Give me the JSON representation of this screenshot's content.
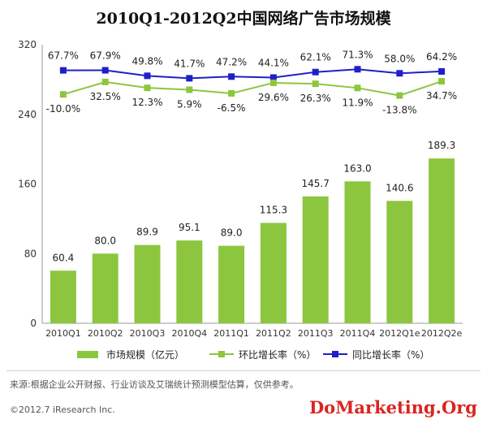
{
  "chart_data": {
    "type": "bar",
    "title": "2010Q1-2012Q2中国网络广告市场规模",
    "categories": [
      "2010Q1",
      "2010Q2",
      "2010Q3",
      "2010Q4",
      "2011Q1",
      "2011Q2",
      "2011Q3",
      "2011Q4",
      "2012Q1e",
      "2012Q2e"
    ],
    "y_ticks": [
      "0",
      "80",
      "160",
      "240",
      "320"
    ],
    "ylim": [
      0,
      320
    ],
    "grid": false,
    "legend_position": "bottom",
    "series": [
      {
        "name": "市场规模（亿元）",
        "kind": "bar",
        "color": "#8cc63f",
        "values": [
          60.4,
          80.0,
          89.9,
          95.1,
          89.0,
          115.3,
          145.7,
          163.0,
          140.6,
          189.3
        ],
        "labels": [
          "60.4",
          "80.0",
          "89.9",
          "95.1",
          "89.0",
          "115.3",
          "145.7",
          "163.0",
          "140.6",
          "189.3"
        ]
      },
      {
        "name": "环比增长率（%）",
        "kind": "line",
        "color": "#8cc63f",
        "values": [
          -10.0,
          32.5,
          12.3,
          5.9,
          -6.5,
          29.6,
          26.3,
          11.9,
          -13.8,
          34.7
        ],
        "labels": [
          "-10.0%",
          "32.5%",
          "12.3%",
          "5.9%",
          "-6.5%",
          "29.6%",
          "26.3%",
          "11.9%",
          "-13.8%",
          "34.7%"
        ]
      },
      {
        "name": "同比增长率（%）",
        "kind": "line",
        "color": "#1f1fc8",
        "values": [
          67.7,
          67.9,
          49.8,
          41.7,
          47.2,
          44.1,
          62.1,
          71.3,
          58.0,
          64.2
        ],
        "labels": [
          "67.7%",
          "67.9%",
          "49.8%",
          "41.7%",
          "47.2%",
          "44.1%",
          "62.1%",
          "71.3%",
          "58.0%",
          "64.2%"
        ]
      }
    ]
  },
  "footer": {
    "source": "来源:根据企业公开财报、行业访谈及艾瑞统计预测模型估算，仅供参考。",
    "copyright": "©2012.7 iResearch Inc.",
    "watermark": "DoMarketing.Org"
  }
}
